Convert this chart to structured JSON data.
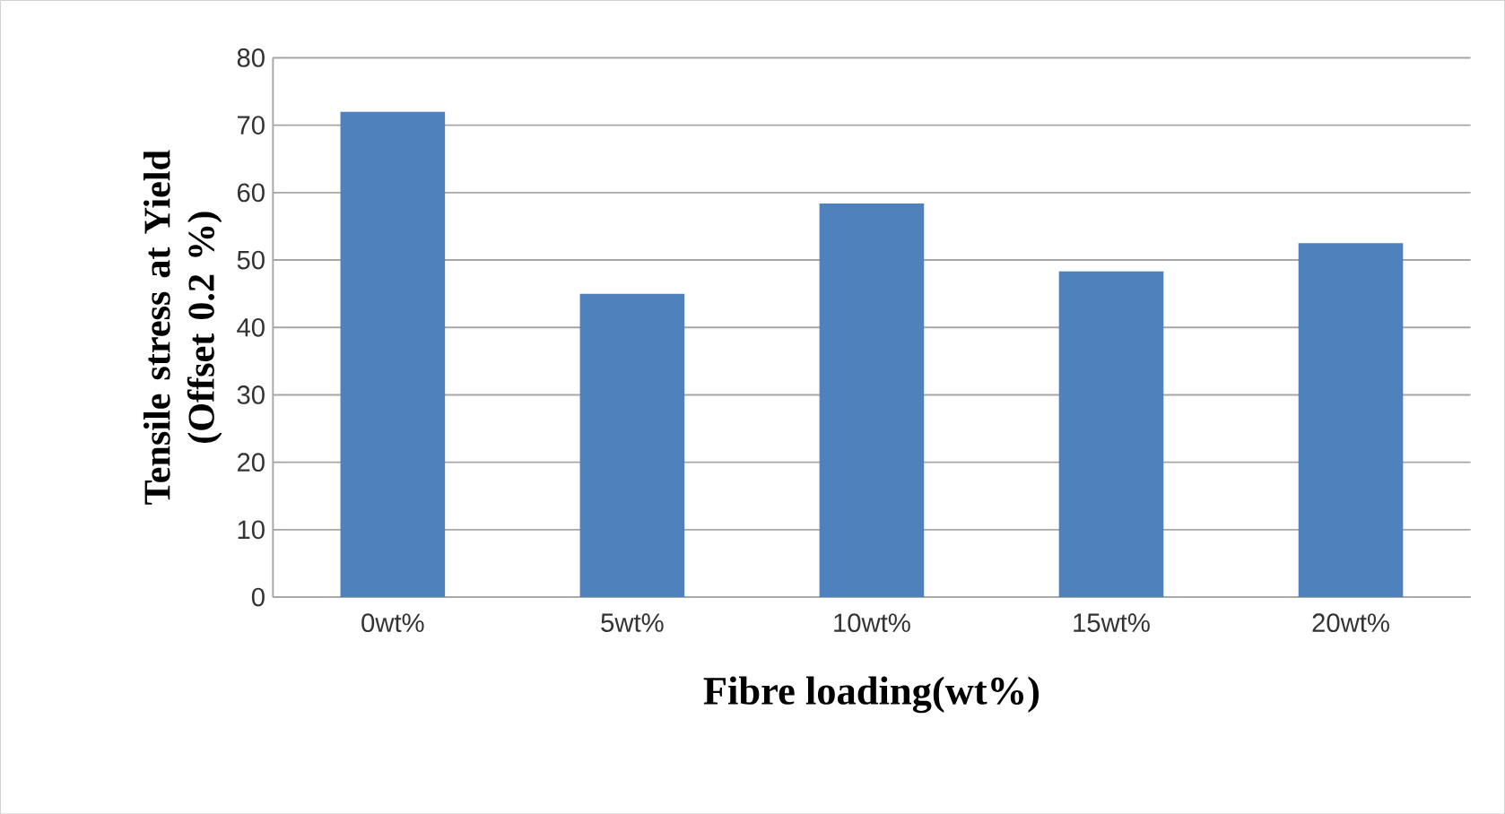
{
  "chart_data": {
    "type": "bar",
    "xlabel": "Fibre loading(wt%)",
    "ylabel": "Tensile stress at Yield\n(Offset 0.2 %)",
    "categories": [
      "0wt%",
      "5wt%",
      "10wt%",
      "15wt%",
      "20wt%"
    ],
    "values": [
      72,
      45,
      58.4,
      48.3,
      52.5
    ],
    "color": "#4f81bd",
    "ylim": [
      0,
      80
    ],
    "yticks": [
      0,
      10,
      20,
      30,
      40,
      50,
      60,
      70,
      80
    ],
    "grid": "y"
  }
}
